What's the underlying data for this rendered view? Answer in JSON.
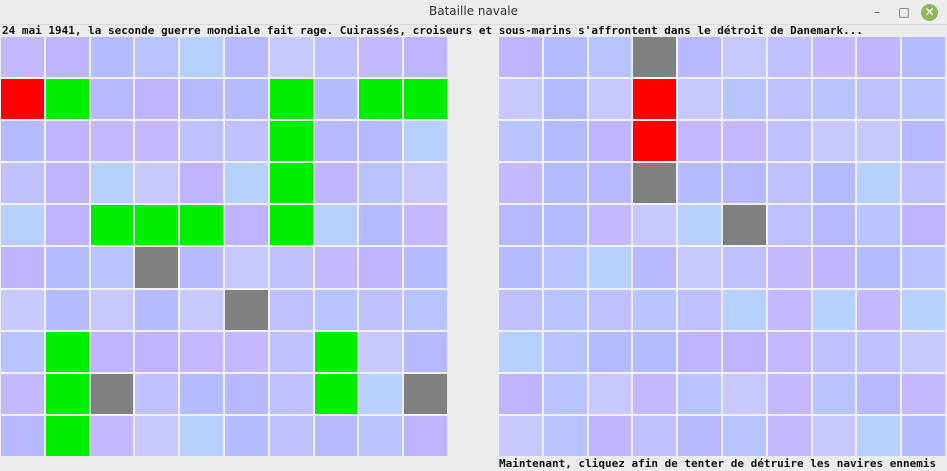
{
  "window": {
    "title": "Bataille navale",
    "minimize": "–",
    "maximize": "□",
    "close": "✕"
  },
  "intro_text": "24 mai 1941, la seconde guerre mondiale fait rage. Cuirassés, croiseurs et sous-marins s'affrontent dans le détroit de Danemark...",
  "status_text": "Maintenant, cliquez afin de tenter de détruire les navires ennemis",
  "colors": {
    "ship": "#00ee00",
    "hit": "#ff0000",
    "miss": "#808080",
    "water_palette": [
      "#b8b8ff",
      "#c6b8ff",
      "#b8c4ff",
      "#c8c8ff",
      "#bfb4ff",
      "#b8d0ff",
      "#c0c0ff",
      "#b4bcff"
    ]
  },
  "player_board": [
    [
      "water",
      "water",
      "water",
      "water",
      "water",
      "water",
      "water",
      "water",
      "water",
      "water"
    ],
    [
      "hit",
      "ship",
      "water",
      "water",
      "water",
      "water",
      "ship",
      "water",
      "ship",
      "ship"
    ],
    [
      "water",
      "water",
      "water",
      "water",
      "water",
      "water",
      "ship",
      "water",
      "water",
      "water"
    ],
    [
      "water",
      "water",
      "water",
      "water",
      "water",
      "water",
      "ship",
      "water",
      "water",
      "water"
    ],
    [
      "water",
      "water",
      "ship",
      "ship",
      "ship",
      "water",
      "ship",
      "water",
      "water",
      "water"
    ],
    [
      "water",
      "water",
      "water",
      "miss",
      "water",
      "water",
      "water",
      "water",
      "water",
      "water"
    ],
    [
      "water",
      "water",
      "water",
      "water",
      "water",
      "miss",
      "water",
      "water",
      "water",
      "water"
    ],
    [
      "water",
      "ship",
      "water",
      "water",
      "water",
      "water",
      "water",
      "ship",
      "water",
      "water"
    ],
    [
      "water",
      "ship",
      "miss",
      "water",
      "water",
      "water",
      "water",
      "ship",
      "water",
      "miss"
    ],
    [
      "water",
      "ship",
      "water",
      "water",
      "water",
      "water",
      "water",
      "water",
      "water",
      "water"
    ]
  ],
  "enemy_board": [
    [
      "water",
      "water",
      "water",
      "miss",
      "water",
      "water",
      "water",
      "water",
      "water",
      "water"
    ],
    [
      "water",
      "water",
      "water",
      "hit",
      "water",
      "water",
      "water",
      "water",
      "water",
      "water"
    ],
    [
      "water",
      "water",
      "water",
      "hit",
      "water",
      "water",
      "water",
      "water",
      "water",
      "water"
    ],
    [
      "water",
      "water",
      "water",
      "miss",
      "water",
      "water",
      "water",
      "water",
      "water",
      "water"
    ],
    [
      "water",
      "water",
      "water",
      "water",
      "water",
      "miss",
      "water",
      "water",
      "water",
      "water"
    ],
    [
      "water",
      "water",
      "water",
      "water",
      "water",
      "water",
      "water",
      "water",
      "water",
      "water"
    ],
    [
      "water",
      "water",
      "water",
      "water",
      "water",
      "water",
      "water",
      "water",
      "water",
      "water"
    ],
    [
      "water",
      "water",
      "water",
      "water",
      "water",
      "water",
      "water",
      "water",
      "water",
      "water"
    ],
    [
      "water",
      "water",
      "water",
      "water",
      "water",
      "water",
      "water",
      "water",
      "water",
      "water"
    ],
    [
      "water",
      "water",
      "water",
      "water",
      "water",
      "water",
      "water",
      "water",
      "water",
      "water"
    ]
  ]
}
